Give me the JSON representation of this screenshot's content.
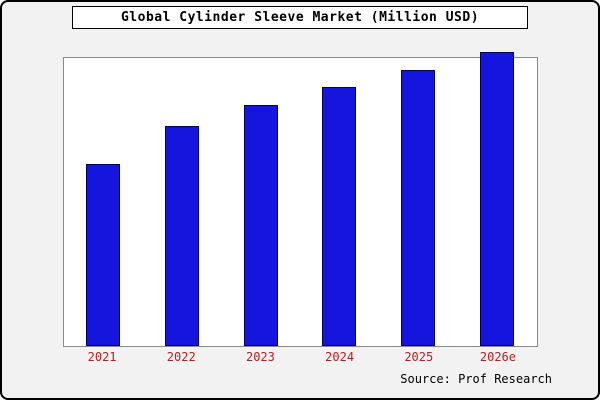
{
  "title": "Global Cylinder Sleeve Market (Million USD)",
  "source": "Source: Prof Research",
  "colors": {
    "frame_background": "#f2f2f2",
    "plot_background": "#ffffff",
    "frame_border": "#000000",
    "bar_fill": "#1515dd",
    "bar_edge": "#000060",
    "tick_label": "#b22222"
  },
  "chart_data": {
    "type": "bar",
    "title": "Global Cylinder Sleeve Market (Million USD)",
    "categories": [
      "2021",
      "2022",
      "2023",
      "2024",
      "2025",
      "2026e"
    ],
    "values": [
      62,
      75,
      82,
      88,
      94,
      100
    ],
    "xlabel": "",
    "ylabel": "",
    "ylim": [
      0,
      98
    ],
    "grid": false,
    "legend": false,
    "annotation": "Source: Prof Research"
  }
}
